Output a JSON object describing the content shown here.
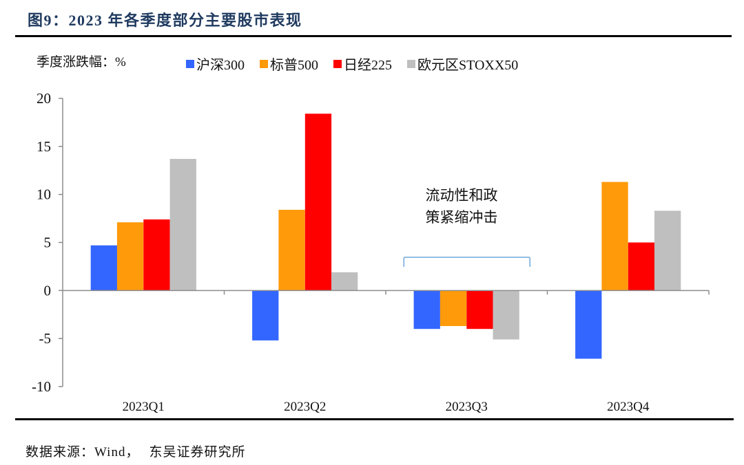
{
  "header": {
    "title": "图9：2023 年各季度部分主要股市表现"
  },
  "footer": {
    "source_prefix": "数据来源：Wind，",
    "source_org": "东吴证券研究所"
  },
  "chart_data": {
    "type": "bar",
    "title": "图9：2023 年各季度部分主要股市表现",
    "ylabel": "季度涨跌幅：%",
    "xlabel": "",
    "categories": [
      "2023Q1",
      "2023Q2",
      "2023Q3",
      "2023Q4"
    ],
    "series": [
      {
        "name": "沪深300",
        "color": "#3366ff",
        "values": [
          4.7,
          -5.2,
          -4.0,
          -7.1
        ]
      },
      {
        "name": "标普500",
        "color": "#ff9a0a",
        "values": [
          7.1,
          8.4,
          -3.7,
          11.3
        ]
      },
      {
        "name": "日经225",
        "color": "#ff0000",
        "values": [
          7.4,
          18.4,
          -4.0,
          5.0
        ]
      },
      {
        "name": "欧元区STOXX50",
        "color": "#bfbfbf",
        "values": [
          13.7,
          1.9,
          -5.1,
          8.3
        ]
      }
    ],
    "ylim": [
      -10,
      20
    ],
    "yticks": [
      "20",
      "15",
      "10",
      "5",
      "0",
      "-5",
      "-10"
    ],
    "ytick_values": [
      20,
      15,
      10,
      5,
      0,
      -5,
      -10
    ],
    "grid": false,
    "legend_position": "top",
    "annotation": {
      "lines": [
        "流动性和政",
        "策紧缩冲击"
      ],
      "bracket_color": "#6fa8dc",
      "target_category": "2023Q3"
    },
    "axis_color": "#8c8c8c"
  }
}
